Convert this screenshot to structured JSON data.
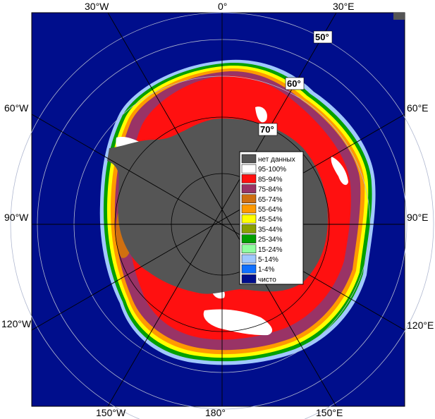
{
  "map": {
    "longitude_labels": {
      "top": [
        "30°W",
        "0°",
        "30°E"
      ],
      "bottom": [
        "150°W",
        "180°",
        "150°E"
      ],
      "left": [
        "60°W",
        "90°W",
        "120°W"
      ],
      "right": [
        "60°E",
        "90°E",
        "120°E"
      ]
    },
    "latitude_labels": [
      "50°",
      "60°",
      "70°"
    ],
    "colors": {
      "ocean": "#000e8c",
      "no_data": "#555555",
      "ice_95_100": "#ffffff",
      "ice_85_94": "#ff1010",
      "ice_75_84": "#993366",
      "ice_65_74": "#d07010",
      "ice_55_64": "#ff9a00",
      "ice_45_54": "#ffff00",
      "ice_35_44": "#8aa000",
      "ice_25_34": "#00a000",
      "ice_15_24": "#90ffa0",
      "ice_5_14": "#a0c8ff",
      "ice_1_4": "#1070ff",
      "clear": "#000e8c"
    }
  },
  "legend": {
    "items": [
      {
        "label": "нет данных",
        "color": "#555555"
      },
      {
        "label": "95-100%",
        "color": "#ffffff"
      },
      {
        "label": "85-94%",
        "color": "#ff1010"
      },
      {
        "label": "75-84%",
        "color": "#993366"
      },
      {
        "label": "65-74%",
        "color": "#d07010"
      },
      {
        "label": "55-64%",
        "color": "#ff9a00"
      },
      {
        "label": "45-54%",
        "color": "#ffff00"
      },
      {
        "label": "35-44%",
        "color": "#8aa000"
      },
      {
        "label": "25-34%",
        "color": "#00a000"
      },
      {
        "label": "15-24%",
        "color": "#90ffa0"
      },
      {
        "label": "5-14%",
        "color": "#a0c8ff"
      },
      {
        "label": "1-4%",
        "color": "#1070ff"
      },
      {
        "label": "чисто",
        "color": "#000e8c"
      }
    ]
  }
}
